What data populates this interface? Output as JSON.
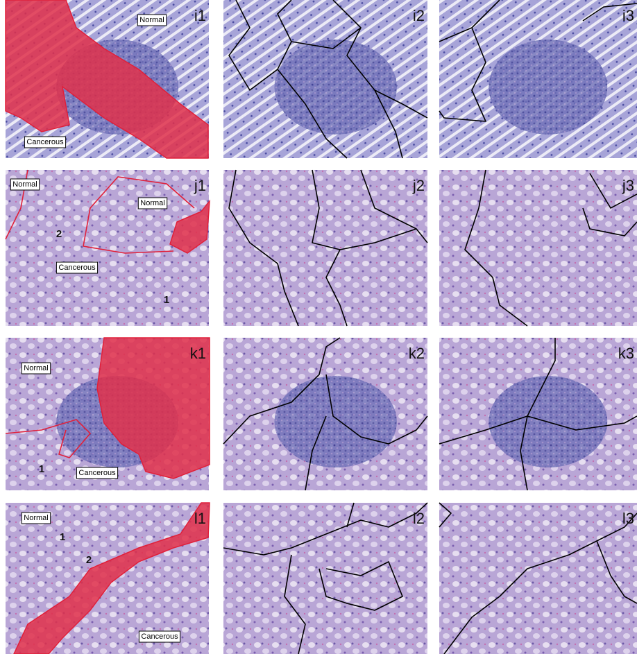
{
  "panels": [
    {
      "id": "i1",
      "labels": [
        "Normal",
        "Cancerous"
      ]
    },
    {
      "id": "i2",
      "labels": []
    },
    {
      "id": "i3",
      "labels": []
    },
    {
      "id": "j1",
      "labels": [
        "Normal",
        "Normal",
        "2",
        "Cancerous",
        "1"
      ]
    },
    {
      "id": "j2",
      "labels": []
    },
    {
      "id": "j3",
      "labels": []
    },
    {
      "id": "k1",
      "labels": [
        "Normal",
        "1",
        "Cancerous"
      ]
    },
    {
      "id": "k2",
      "labels": []
    },
    {
      "id": "k3",
      "labels": []
    },
    {
      "id": "l1",
      "labels": [
        "Normal",
        "1",
        "2",
        "Cancerous"
      ]
    },
    {
      "id": "l2",
      "labels": []
    },
    {
      "id": "l3",
      "labels": []
    }
  ]
}
